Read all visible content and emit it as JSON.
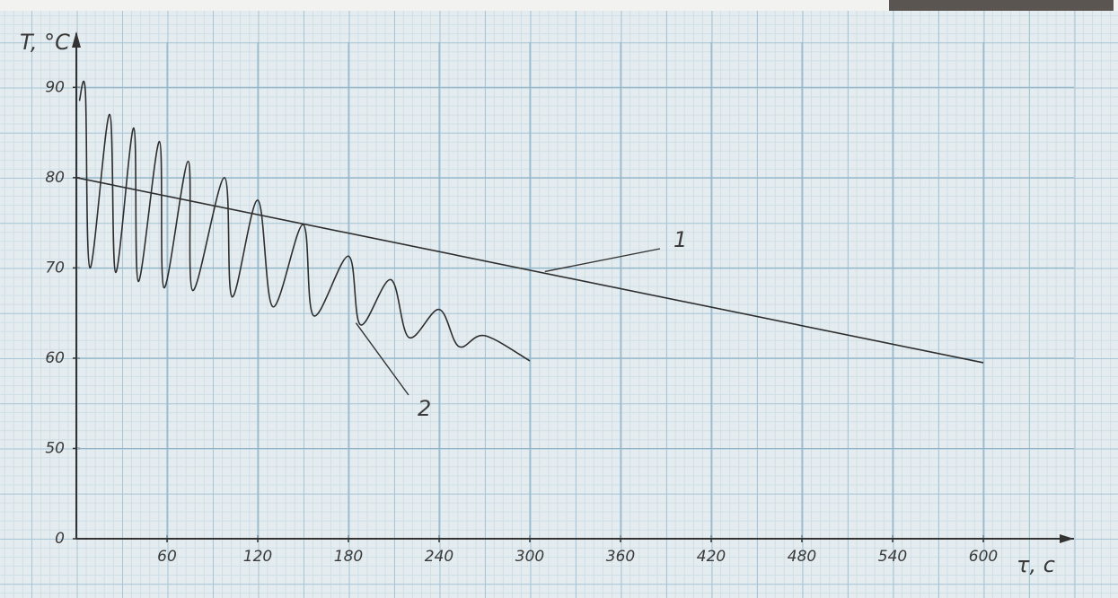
{
  "chart_data": {
    "type": "line",
    "y_label": "T, °C",
    "x_label": "τ, c",
    "xlim": [
      0,
      660
    ],
    "ylim": [
      40,
      95
    ],
    "xticks": [
      60,
      120,
      180,
      240,
      300,
      360,
      420,
      480,
      540,
      600
    ],
    "yticks": [
      {
        "value": 40,
        "label": "0"
      },
      50,
      60,
      70,
      80,
      90
    ],
    "grid": true,
    "series": [
      {
        "name": "1",
        "color": "#2e2e2e",
        "x": [
          0,
          600
        ],
        "values": [
          80,
          59.5
        ]
      },
      {
        "name": "2",
        "color": "#2e2e2e",
        "x": [
          2,
          6,
          9,
          22,
          26,
          38,
          41,
          55,
          58,
          74,
          77,
          98,
          103,
          120,
          130,
          150,
          157,
          180,
          188,
          208,
          220,
          240,
          253,
          270,
          300
        ],
        "values": [
          88.5,
          89.5,
          70,
          87,
          69.5,
          85.5,
          68.5,
          84,
          67.8,
          81.8,
          67.5,
          80,
          66.8,
          77.5,
          65.7,
          74.8,
          64.7,
          71.3,
          63.7,
          68.7,
          62.3,
          65.4,
          61.3,
          62.5,
          59.7
        ]
      }
    ]
  }
}
